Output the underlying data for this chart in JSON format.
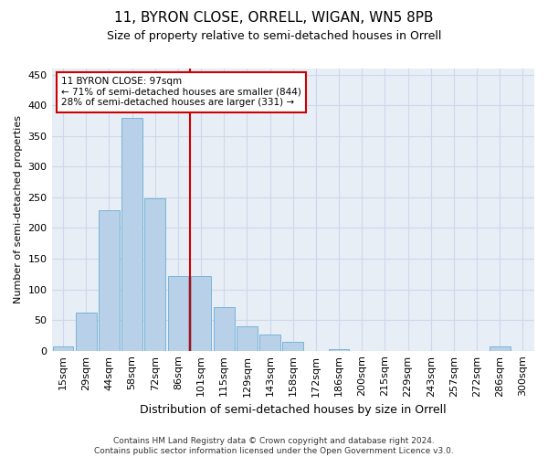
{
  "title": "11, BYRON CLOSE, ORRELL, WIGAN, WN5 8PB",
  "subtitle": "Size of property relative to semi-detached houses in Orrell",
  "xlabel": "Distribution of semi-detached houses by size in Orrell",
  "ylabel": "Number of semi-detached properties",
  "categories": [
    "15sqm",
    "29sqm",
    "44sqm",
    "58sqm",
    "72sqm",
    "86sqm",
    "101sqm",
    "115sqm",
    "129sqm",
    "143sqm",
    "158sqm",
    "172sqm",
    "186sqm",
    "200sqm",
    "215sqm",
    "229sqm",
    "243sqm",
    "257sqm",
    "272sqm",
    "286sqm",
    "300sqm"
  ],
  "values": [
    7,
    62,
    229,
    380,
    248,
    121,
    121,
    71,
    40,
    27,
    14,
    0,
    2,
    0,
    0,
    0,
    0,
    0,
    0,
    7,
    0
  ],
  "bar_color": "#b8d0e8",
  "bar_edge_color": "#6aaed6",
  "grid_color": "#ccd8ea",
  "background_color": "#e8eef6",
  "vline_x_index": 6,
  "vline_color": "#cc0000",
  "annotation_text": "11 BYRON CLOSE: 97sqm\n← 71% of semi-detached houses are smaller (844)\n28% of semi-detached houses are larger (331) →",
  "annotation_box_color": "#ffffff",
  "annotation_box_edge": "#cc0000",
  "footer_text": "Contains HM Land Registry data © Crown copyright and database right 2024.\nContains public sector information licensed under the Open Government Licence v3.0.",
  "ylim": [
    0,
    460
  ],
  "yticks": [
    0,
    50,
    100,
    150,
    200,
    250,
    300,
    350,
    400,
    450
  ],
  "title_fontsize": 11,
  "subtitle_fontsize": 9,
  "tick_fontsize": 8,
  "ylabel_fontsize": 8,
  "xlabel_fontsize": 9,
  "footer_fontsize": 6.5
}
